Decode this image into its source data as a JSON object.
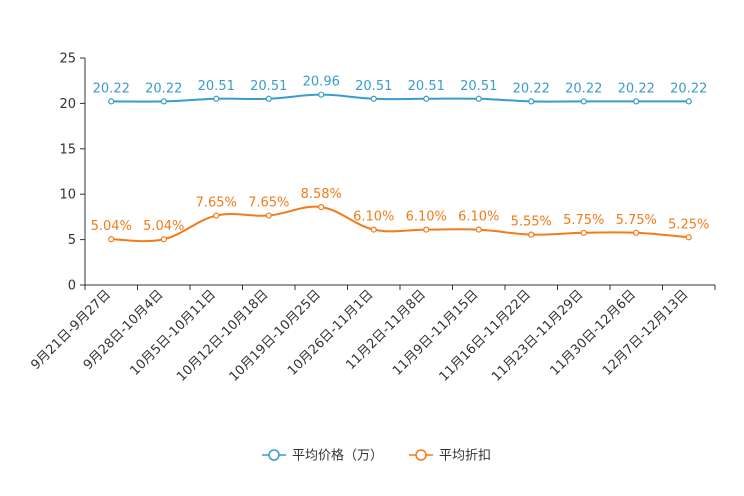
{
  "chart_data": {
    "type": "line",
    "categories": [
      "9月21日-9月27日",
      "9月28日-10月4日",
      "10月5日-10月11日",
      "10月12日-10月18日",
      "10月19日-10月25日",
      "10月26日-11月1日",
      "11月2日-11月8日",
      "11月9日-11月15日",
      "11月16日-11月22日",
      "11月23日-11月29日",
      "11月30日-12月6日",
      "12月7日-12月13日"
    ],
    "series": [
      {
        "name": "平均价格（万）",
        "color": "#3a9ccc",
        "values": [
          20.22,
          20.22,
          20.51,
          20.51,
          20.96,
          20.51,
          20.51,
          20.51,
          20.22,
          20.22,
          20.22,
          20.22
        ],
        "labels": [
          "20.22",
          "20.22",
          "20.51",
          "20.51",
          "20.96",
          "20.51",
          "20.51",
          "20.51",
          "20.22",
          "20.22",
          "20.22",
          "20.22"
        ]
      },
      {
        "name": "平均折扣",
        "color": "#f07c1a",
        "values": [
          5.04,
          5.04,
          7.65,
          7.65,
          8.58,
          6.1,
          6.1,
          6.1,
          5.55,
          5.75,
          5.75,
          5.25
        ],
        "labels": [
          "5.04%",
          "5.04%",
          "7.65%",
          "7.65%",
          "8.58%",
          "6.10%",
          "6.10%",
          "6.10%",
          "5.55%",
          "5.75%",
          "5.75%",
          "5.25%"
        ]
      }
    ],
    "yticks": [
      0,
      5,
      10,
      15,
      20,
      25
    ],
    "ylim": [
      0,
      25
    ],
    "legend_position": "bottom-center",
    "title": "",
    "xlabel": "",
    "ylabel": ""
  }
}
